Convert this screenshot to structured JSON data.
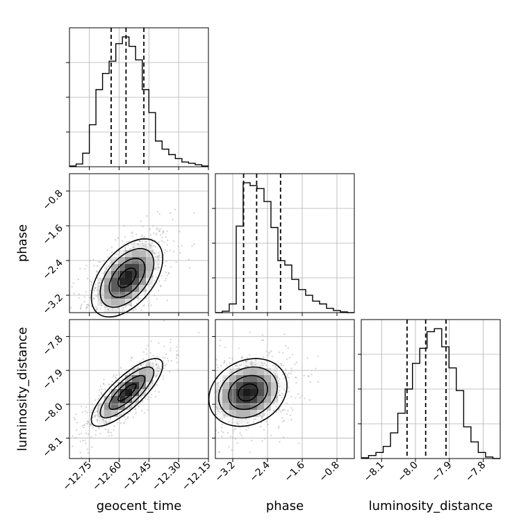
{
  "chart_data": {
    "type": "corner",
    "title": "",
    "parameters": [
      "geocent_time",
      "phase",
      "luminosity_distance"
    ],
    "axis_labels": {
      "geocent_time": "geocent_time",
      "phase": "phase",
      "luminosity_distance": "luminosity_distance"
    },
    "ranges": {
      "geocent_time": [
        -12.85,
        -12.15
      ],
      "phase": [
        -3.6,
        -0.4
      ],
      "luminosity_distance": [
        -8.16,
        -7.75
      ]
    },
    "ticks": {
      "geocent_time": [
        -12.75,
        -12.6,
        -12.45,
        -12.3,
        -12.15
      ],
      "geocent_time_labels": [
        "−12.75",
        "−12.60",
        "−12.45",
        "−12.30",
        "−12.15"
      ],
      "phase": [
        -3.2,
        -2.4,
        -1.6,
        -0.8
      ],
      "phase_labels": [
        "−3.2",
        "−2.4",
        "−1.6",
        "−0.8"
      ],
      "luminosity_distance": [
        -8.1,
        -8.0,
        -7.9,
        -7.8
      ],
      "luminosity_distance_labels": [
        "−8.1",
        "−8.0",
        "−7.9",
        "−7.8"
      ]
    },
    "quantiles": {
      "geocent_time": [
        -12.64,
        -12.565,
        -12.475
      ],
      "phase": [
        -2.95,
        -2.65,
        -2.1
      ],
      "luminosity_distance": [
        -8.025,
        -7.97,
        -7.91
      ]
    },
    "histograms": {
      "geocent_time": [
        0.005,
        0.02,
        0.1,
        0.31,
        0.57,
        0.69,
        0.78,
        0.91,
        0.96,
        0.89,
        0.79,
        0.57,
        0.4,
        0.19,
        0.13,
        0.09,
        0.06,
        0.035,
        0.025,
        0.015,
        0.005
      ],
      "phase": [
        0.0,
        0.01,
        0.06,
        0.6,
        0.9,
        0.88,
        0.86,
        0.77,
        0.59,
        0.36,
        0.33,
        0.23,
        0.16,
        0.12,
        0.08,
        0.06,
        0.03,
        0.015,
        0.005,
        0.0
      ],
      "luminosity_distance": [
        0.005,
        0.02,
        0.04,
        0.08,
        0.17,
        0.3,
        0.46,
        0.63,
        0.73,
        0.84,
        0.86,
        0.74,
        0.6,
        0.45,
        0.21,
        0.11,
        0.04,
        0.01,
        0.0
      ]
    },
    "contours": {
      "phase_vs_geocent_time": {
        "center": [
          -12.56,
          -2.8
        ],
        "sigma": [
          0.09,
          0.45
        ],
        "rho": 0.5
      },
      "luminosity_distance_vs_geocent_time": {
        "center": [
          -12.56,
          -7.965
        ],
        "sigma": [
          0.09,
          0.05
        ],
        "rho": 0.8
      },
      "luminosity_distance_vs_phase": {
        "center": [
          -2.85,
          -7.965
        ],
        "sigma": [
          0.45,
          0.05
        ],
        "rho": 0.2
      }
    },
    "grid": true
  }
}
